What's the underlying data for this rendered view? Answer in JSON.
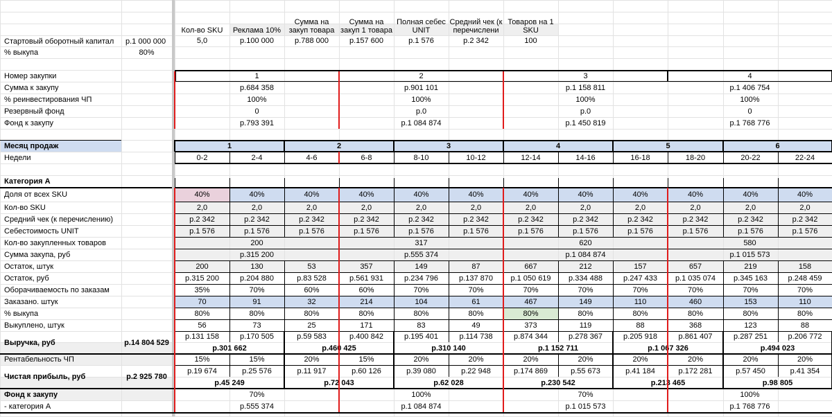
{
  "summary": {
    "start_capital_label": "Стартовый оборотный капитал",
    "start_capital_value": "р.1 000 000",
    "buyout_label": "% выкупа",
    "buyout_value": "80%",
    "headers": [
      "Кол-во SKU",
      "Реклама 10%",
      "Сумма на закуп товара",
      "Сумма на закуп 1 товара",
      "Полная себес UNIT",
      "Средний чек (к перечислени",
      "Товаров на 1 SKU"
    ],
    "values": [
      "5,0",
      "р.100 000",
      "р.788 000",
      "р.157 600",
      "р.1 576",
      "р.2 342",
      "100"
    ]
  },
  "purchase": {
    "labels": [
      "Номер закупки",
      "Сумма к закупу",
      "% реинвестирования ЧП",
      "Резервный фонд",
      "Фонд к закупу"
    ],
    "columns": [
      [
        "1",
        "р.684 358",
        "100%",
        "0",
        "р.793 391"
      ],
      [
        "2",
        "р.901 101",
        "100%",
        "р.0",
        "р.1 084 874"
      ],
      [
        "3",
        "р.1 158 811",
        "100%",
        "р.0",
        "р.1 450 819"
      ],
      [
        "4",
        "р.1 406 754",
        "100%",
        "0",
        "р.1 768 776"
      ]
    ]
  },
  "months": {
    "label": "Месяц продаж",
    "weeks_label": "Недели",
    "items": [
      "1",
      "2",
      "3",
      "4",
      "5",
      "6"
    ],
    "weeks": [
      "0-2",
      "2-4",
      "4-6",
      "6-8",
      "8-10",
      "10-12",
      "12-14",
      "14-16",
      "16-18",
      "18-20",
      "20-22",
      "22-24"
    ]
  },
  "category": {
    "title": "Категория А",
    "rows": [
      {
        "label": "Доля от всех SKU",
        "cells": [
          "40%",
          "40%",
          "40%",
          "40%",
          "40%",
          "40%",
          "40%",
          "40%",
          "40%",
          "40%",
          "40%",
          "40%"
        ]
      },
      {
        "label": "Кол-во SKU",
        "cells": [
          "2,0",
          "2,0",
          "2,0",
          "2,0",
          "2,0",
          "2,0",
          "2,0",
          "2,0",
          "2,0",
          "2,0",
          "2,0",
          "2,0"
        ]
      },
      {
        "label": "Средний чек (к перечислению)",
        "cells": [
          "р.2 342",
          "р.2 342",
          "р.2 342",
          "р.2 342",
          "р.2 342",
          "р.2 342",
          "р.2 342",
          "р.2 342",
          "р.2 342",
          "р.2 342",
          "р.2 342",
          "р.2 342"
        ]
      },
      {
        "label": "Себестоимость UNIT",
        "cells": [
          "р.1 576",
          "р.1 576",
          "р.1 576",
          "р.1 576",
          "р.1 576",
          "р.1 576",
          "р.1 576",
          "р.1 576",
          "р.1 576",
          "р.1 576",
          "р.1 576",
          "р.1 576"
        ]
      },
      {
        "label": "Кол-во закупленных товаров",
        "merged": [
          "200",
          "317",
          "620",
          "580"
        ]
      },
      {
        "label": "Сумма закупа, руб",
        "merged": [
          "р.315 200",
          "р.555 374",
          "р.1 084 874",
          "р.1 015 573"
        ]
      },
      {
        "label": "Остаток, штук",
        "cells": [
          "200",
          "130",
          "53",
          "357",
          "149",
          "87",
          "667",
          "212",
          "157",
          "657",
          "219",
          "158"
        ]
      },
      {
        "label": "Остаток, руб",
        "cells": [
          "р.315 200",
          "р.204 880",
          "р.83 528",
          "р.561 931",
          "р.234 796",
          "р.137 870",
          "р.1 050 619",
          "р.334 488",
          "р.247 433",
          "р.1 035 074",
          "р.345 163",
          "р.248 459"
        ]
      },
      {
        "label": "Оборачиваемость по заказам",
        "cells": [
          "35%",
          "70%",
          "60%",
          "60%",
          "70%",
          "70%",
          "70%",
          "70%",
          "70%",
          "70%",
          "70%",
          "70%"
        ]
      },
      {
        "label": "Заказано. штук",
        "cells": [
          "70",
          "91",
          "32",
          "214",
          "104",
          "61",
          "467",
          "149",
          "110",
          "460",
          "153",
          "110"
        ]
      },
      {
        "label": "%  выкупа",
        "cells": [
          "80%",
          "80%",
          "80%",
          "80%",
          "80%",
          "80%",
          "80%",
          "80%",
          "80%",
          "80%",
          "80%",
          "80%"
        ]
      },
      {
        "label": "Выкуплено, штук",
        "cells": [
          "56",
          "73",
          "25",
          "171",
          "83",
          "49",
          "373",
          "119",
          "88",
          "368",
          "123",
          "88"
        ]
      }
    ],
    "revenue": {
      "label": "Выручка, руб",
      "total": "р.14 804 529",
      "cells": [
        "р.131 158",
        "р.170 505",
        "р.59 583",
        "р.400 842",
        "р.195 401",
        "р.114 738",
        "р.874 344",
        "р.278 367",
        "р.205 918",
        "р.861 407",
        "р.287 251",
        "р.206 772"
      ],
      "monthly": [
        "р.301 662",
        "р.460 425",
        "р.310 140",
        "р.1 152 711",
        "р.1 067 326",
        "р.494 023"
      ]
    },
    "profitability": {
      "label": "Рентабельность ЧП",
      "cells": [
        "15%",
        "15%",
        "20%",
        "15%",
        "20%",
        "20%",
        "20%",
        "20%",
        "20%",
        "20%",
        "20%",
        "20%"
      ]
    },
    "net_profit": {
      "label": "Чистая прибыль, руб",
      "total": "р.2 925 780",
      "cells": [
        "р.19 674",
        "р.25 576",
        "р.11 917",
        "р.60 126",
        "р.39 080",
        "р.22 948",
        "р.174 869",
        "р.55 673",
        "р.41 184",
        "р.172 281",
        "р.57 450",
        "р.41 354"
      ],
      "monthly": [
        "р.45 249",
        "р.72 043",
        "р.62 028",
        "р.230 542",
        "р.213 465",
        "р.98 805"
      ]
    },
    "fund": {
      "label": "Фонд к закупу",
      "percents": [
        "70%",
        "100%",
        "70%",
        "100%"
      ],
      "sub_label": "- категория А",
      "values": [
        "р.555 374",
        "р.1 084 874",
        "р.1 015 573",
        "р.1 768 776"
      ]
    }
  },
  "colors": {
    "header_blue": "#cfdcf0",
    "row_gray": "#efefef",
    "pink": "#ead1dc",
    "green": "#d9ead3",
    "red_line": "#e01b1b",
    "grid": "#e2e2e2"
  }
}
